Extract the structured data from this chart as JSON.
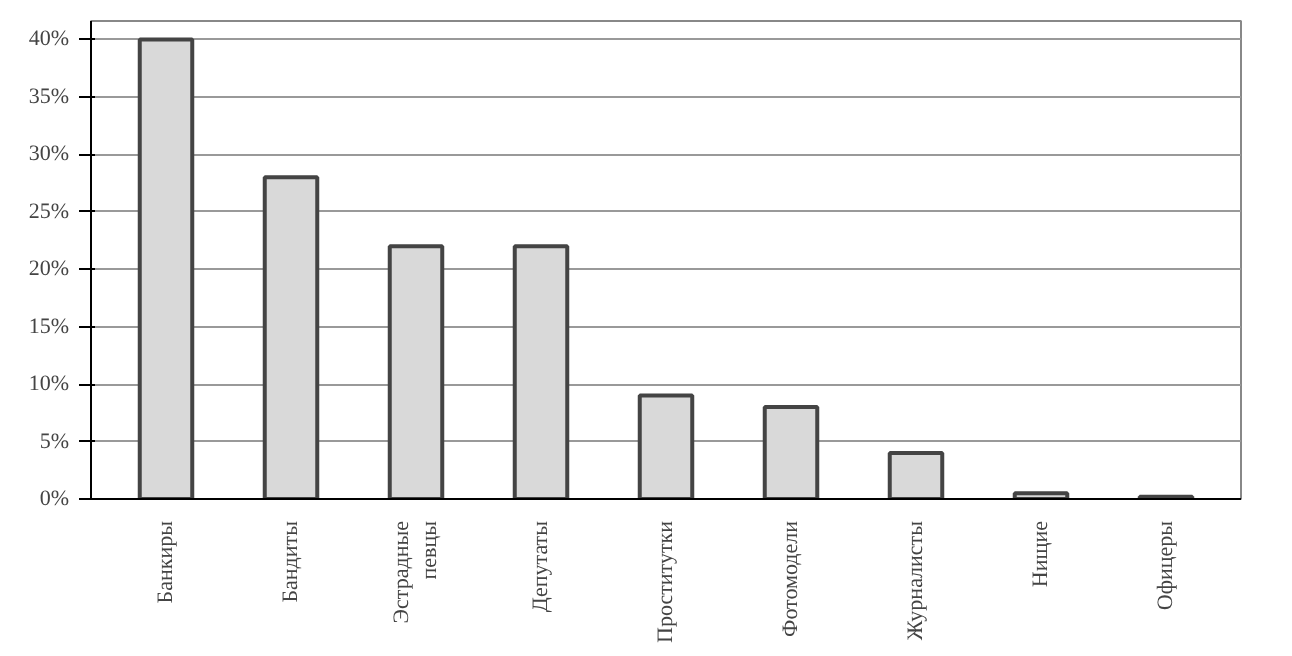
{
  "chart_data": {
    "type": "bar",
    "categories": [
      "Банкиры",
      "Бандиты",
      "Эстрадные певцы",
      "Депутаты",
      "Проститутки",
      "Фотомодели",
      "Журналисты",
      "Нищие",
      "Офицеры"
    ],
    "values": [
      40,
      28,
      22,
      22,
      9,
      8,
      4,
      0.5,
      0.2
    ],
    "color": "#d9d9d9",
    "ylim": [
      0,
      40
    ],
    "yticks": [
      {
        "value": 0,
        "label": "0%"
      },
      {
        "value": 5,
        "label": "5%"
      },
      {
        "value": 10,
        "label": "10%"
      },
      {
        "value": 15,
        "label": "15%"
      },
      {
        "value": 20,
        "label": "20%"
      },
      {
        "value": 25,
        "label": "25%"
      },
      {
        "value": 30,
        "label": "30%"
      },
      {
        "value": 35,
        "label": "35%"
      },
      {
        "value": 40,
        "label": "40%"
      }
    ],
    "grid": "y"
  }
}
